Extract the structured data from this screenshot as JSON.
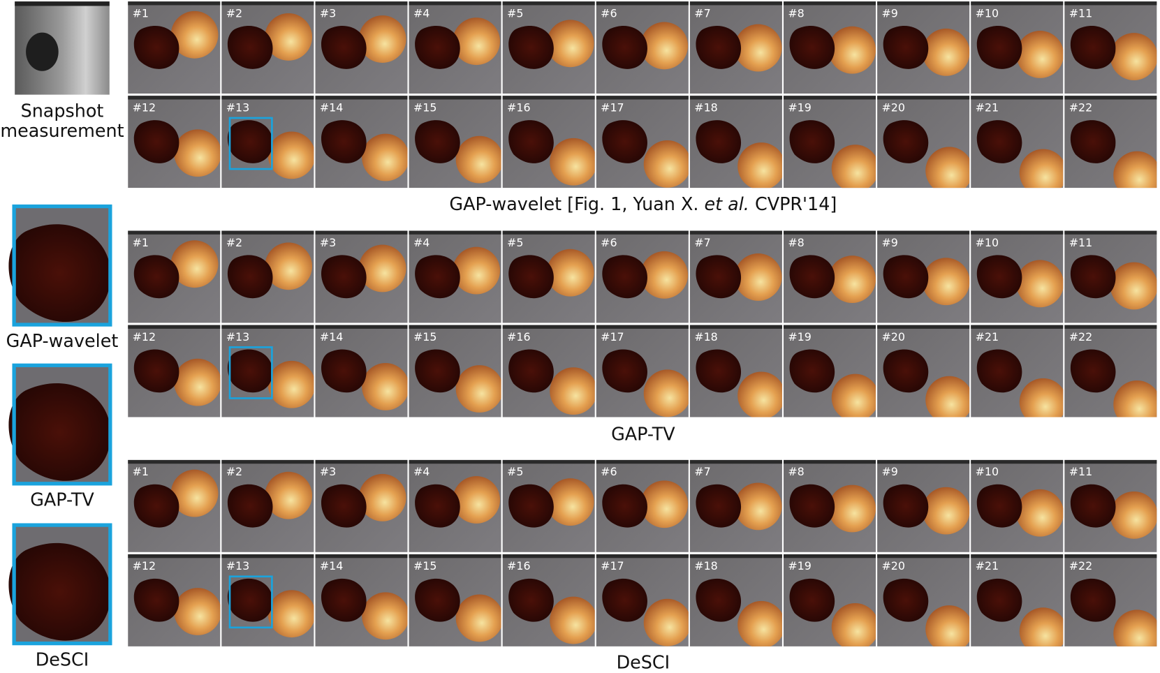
{
  "snapshot": {
    "label_lines": [
      "Snapshot",
      "measurement"
    ]
  },
  "zooms": [
    "GAP-wavelet",
    "GAP-TV",
    "DeSCI"
  ],
  "panels": [
    {
      "caption": [
        "GAP-wavelet [Fig. 1, Yuan X. ",
        "et al.",
        " CVPR'14]"
      ],
      "frames": [
        "#1",
        "#2",
        "#3",
        "#4",
        "#5",
        "#6",
        "#7",
        "#8",
        "#9",
        "#10",
        "#11",
        "#12",
        "#13",
        "#14",
        "#15",
        "#16",
        "#17",
        "#18",
        "#19",
        "#20",
        "#21",
        "#22"
      ]
    },
    {
      "caption": [
        "GAP-TV"
      ],
      "frames": [
        "#1",
        "#2",
        "#3",
        "#4",
        "#5",
        "#6",
        "#7",
        "#8",
        "#9",
        "#10",
        "#11",
        "#12",
        "#13",
        "#14",
        "#15",
        "#16",
        "#17",
        "#18",
        "#19",
        "#20",
        "#21",
        "#22"
      ]
    },
    {
      "caption": [
        "DeSCI"
      ],
      "frames": [
        "#1",
        "#2",
        "#3",
        "#4",
        "#5",
        "#6",
        "#7",
        "#8",
        "#9",
        "#10",
        "#11",
        "#12",
        "#13",
        "#14",
        "#15",
        "#16",
        "#17",
        "#18",
        "#19",
        "#20",
        "#21",
        "#22"
      ]
    }
  ]
}
